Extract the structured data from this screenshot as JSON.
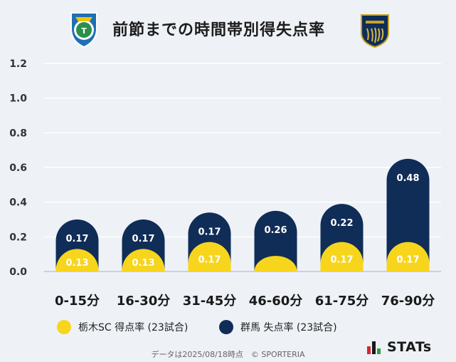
{
  "title": "前節までの時間帯別得失点率",
  "chart_data": {
    "type": "bar",
    "title": "前節までの時間帯別得失点率",
    "categories": [
      "0-15分",
      "16-30分",
      "31-45分",
      "46-60分",
      "61-75分",
      "76-90分"
    ],
    "series": [
      {
        "name": "栃木SC 得点率 (23試合)",
        "color": "#f7d51d",
        "values": [
          0.13,
          0.13,
          0.17,
          0.09,
          0.17,
          0.17
        ],
        "labels": [
          "0.13",
          "0.13",
          "0.17",
          "",
          "0.17",
          "0.17"
        ]
      },
      {
        "name": "群馬 失点率 (23試合)",
        "color": "#0f2d57",
        "values": [
          0.17,
          0.17,
          0.17,
          0.26,
          0.22,
          0.48
        ],
        "labels": [
          "0.17",
          "0.17",
          "0.17",
          "0.26",
          "0.22",
          "0.48"
        ]
      }
    ],
    "yticks": [
      "0.0",
      "0.2",
      "0.4",
      "0.6",
      "0.8",
      "1.0",
      "1.2"
    ],
    "ylim": [
      0,
      1.2
    ],
    "stacked": true,
    "grid": true
  },
  "legend": {
    "home_label": "栃木SC 得点率 (23試合)",
    "away_label": "群馬 失点率 (23試合)"
  },
  "footer": "データは2025/08/18時点　© SPORTERIA",
  "brand": "STATs",
  "logos": {
    "home": "tochigi-sc-logo",
    "away": "thespa-gunma-logo"
  }
}
